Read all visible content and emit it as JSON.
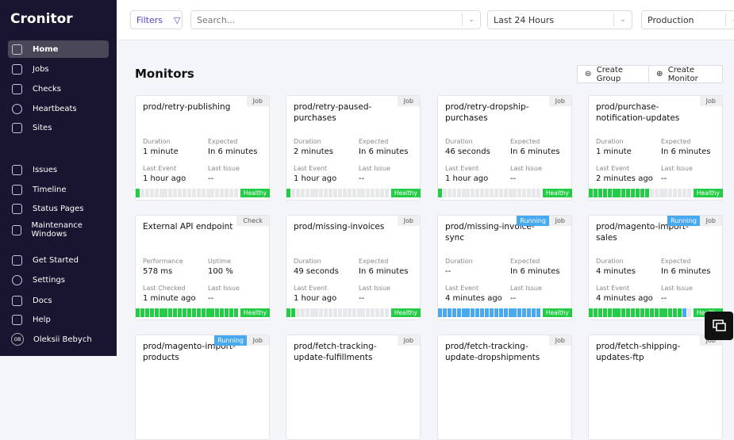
{
  "sidebar": {
    "brand": "Cronitor",
    "nav": [
      {
        "label": "Home"
      },
      {
        "label": "Jobs"
      },
      {
        "label": "Checks"
      },
      {
        "label": "Heartbeats"
      },
      {
        "label": "Sites"
      },
      {
        "label": "Issues"
      },
      {
        "label": "Timeline"
      },
      {
        "label": "Status Pages"
      },
      {
        "label": "Maintenance Windows"
      },
      {
        "label": "Get Started"
      },
      {
        "label": "Settings"
      },
      {
        "label": "Docs"
      },
      {
        "label": "Help"
      }
    ],
    "user": {
      "initials": "OB",
      "name": "Oleksii Bebych"
    }
  },
  "topbar": {
    "filters": "Filters",
    "search": "Search...",
    "time": "Last 24 Hours",
    "environment": "Production"
  },
  "page": {
    "title": "Monitors",
    "actions": [
      "Create Group",
      "Create Monitor"
    ]
  },
  "monitors": [
    {
      "name": "prod/retry-publishing",
      "type": "Job",
      "fields": [
        {
          "label": "Duration",
          "value": "1 minute"
        },
        {
          "label": "Expected",
          "value": "In 6 minutes"
        },
        {
          "label": "Last Event",
          "value": "1 hour ago"
        },
        {
          "label": "Last Issue",
          "value": "--"
        }
      ],
      "status": "Healthy"
    },
    {
      "name": "prod/retry-paused-purchases",
      "type": "Job",
      "fields": [
        {
          "label": "Duration",
          "value": "2 minutes"
        },
        {
          "label": "Expected",
          "value": "In 6 minutes"
        },
        {
          "label": "Last Event",
          "value": "1 hour ago"
        },
        {
          "label": "Last Issue",
          "value": "--"
        }
      ],
      "status": "Healthy"
    },
    {
      "name": "prod/retry-dropship-purchases",
      "type": "Job",
      "fields": [
        {
          "label": "Duration",
          "value": "46 seconds"
        },
        {
          "label": "Expected",
          "value": "In 6 minutes"
        },
        {
          "label": "Last Event",
          "value": "1 hour ago"
        },
        {
          "label": "Last Issue",
          "value": "--"
        }
      ],
      "status": "Healthy"
    },
    {
      "name": "prod/purchase-notification-updates",
      "type": "Job",
      "fields": [
        {
          "label": "Duration",
          "value": "1 minute"
        },
        {
          "label": "Expected",
          "value": "In 6 minutes"
        },
        {
          "label": "Last Event",
          "value": "2 minutes ago"
        },
        {
          "label": "Last Issue",
          "value": "--"
        }
      ],
      "status": "Healthy"
    },
    {
      "name": "External API endpoint",
      "type": "Check",
      "fields": [
        {
          "label": "Performance",
          "value": "578 ms"
        },
        {
          "label": "Uptime",
          "value": "100 %"
        },
        {
          "label": "Last Checked",
          "value": "1 minute ago"
        },
        {
          "label": "Last Issue",
          "value": "--"
        }
      ],
      "status": "Healthy"
    },
    {
      "name": "prod/missing-invoices",
      "type": "Job",
      "fields": [
        {
          "label": "Duration",
          "value": "49 seconds"
        },
        {
          "label": "Expected",
          "value": "In 6 minutes"
        },
        {
          "label": "Last Event",
          "value": "1 hour ago"
        },
        {
          "label": "Last Issue",
          "value": "--"
        }
      ],
      "status": "Healthy"
    },
    {
      "name": "prod/missing-invoice-sync",
      "type": "Job",
      "running": "Running",
      "fields": [
        {
          "label": "Duration",
          "value": "--"
        },
        {
          "label": "Expected",
          "value": "In 6 minutes"
        },
        {
          "label": "Last Event",
          "value": "4 minutes ago"
        },
        {
          "label": "Last Issue",
          "value": "--"
        }
      ],
      "status": "Healthy"
    },
    {
      "name": "prod/magento-import-sales",
      "type": "Job",
      "running": "Running",
      "fields": [
        {
          "label": "Duration",
          "value": "4 minutes"
        },
        {
          "label": "Expected",
          "value": "In 6 minutes"
        },
        {
          "label": "Last Event",
          "value": "4 minutes ago"
        },
        {
          "label": "Last Issue",
          "value": "--"
        }
      ],
      "status": "Healthy"
    },
    {
      "name": "prod/magento-import-products",
      "type": "Job",
      "running": "Running"
    },
    {
      "name": "prod/fetch-tracking-update-fulfillments",
      "type": "Job"
    },
    {
      "name": "prod/fetch-tracking-update-dropshipments",
      "type": "Job"
    },
    {
      "name": "prod/fetch-shipping-updates-ftp",
      "type": "Job"
    }
  ]
}
